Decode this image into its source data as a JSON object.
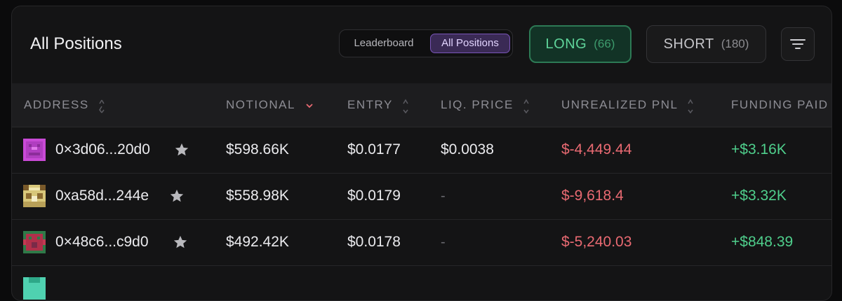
{
  "header": {
    "title": "All Positions",
    "toggle": {
      "leaderboard_label": "Leaderboard",
      "all_positions_label": "All Positions",
      "active": "All Positions"
    },
    "long_button": {
      "label": "LONG",
      "count": "(66)"
    },
    "short_button": {
      "label": "SHORT",
      "count": "(180)"
    },
    "filter_icon": "filter-icon"
  },
  "table": {
    "columns": [
      {
        "label": "ADDRESS",
        "sort_icon": "sort-updown-icon"
      },
      {
        "label": "NOTIONAL",
        "sort_icon": "chevron-down-icon"
      },
      {
        "label": "ENTRY",
        "sort_icon": "sort-updown-icon"
      },
      {
        "label": "LIQ. PRICE",
        "sort_icon": "sort-updown-icon"
      },
      {
        "label": "UNREALIZED PNL",
        "sort_icon": "sort-updown-icon"
      },
      {
        "label": "FUNDING PAID",
        "sort_icon": ""
      }
    ],
    "rows": [
      {
        "address": "0×3d06...20d0",
        "notional": "$598.66K",
        "entry": "$0.0177",
        "liq_price": "$0.0038",
        "pnl": "$-4,449.44",
        "funding": "+$3.16K"
      },
      {
        "address": "0xa58d...244e",
        "notional": "$558.98K",
        "entry": "$0.0179",
        "liq_price": "-",
        "pnl": "$-9,618.4",
        "funding": "+$3.32K"
      },
      {
        "address": "0×48c6...c9d0",
        "notional": "$492.42K",
        "entry": "$0.0178",
        "liq_price": "-",
        "pnl": "$-5,240.03",
        "funding": "+$848.39"
      }
    ]
  },
  "colors": {
    "accent_long": "#5fd49a",
    "accent_purple": "#7a55b8",
    "negative": "#e96a72",
    "positive": "#4fcf8c",
    "sort_active": "#e96a72"
  }
}
